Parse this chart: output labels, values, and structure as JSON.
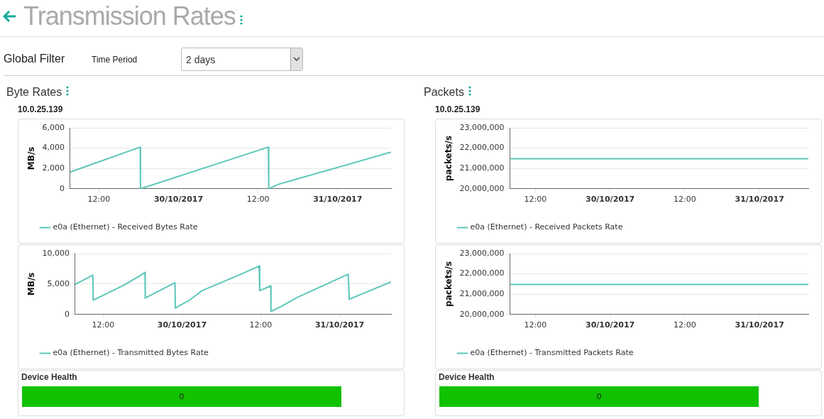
{
  "chart_data": [
    {
      "type": "other",
      "title": "Transmission Rates",
      "annotations": [
        "Global Filter",
        "Time Period",
        "2 days"
      ]
    },
    {
      "type": "line",
      "title": "Byte Rates",
      "subtitle": "10.0.25.139",
      "ylabel": "MB/s",
      "x": [
        "2017-10-29T07:40",
        "2017-10-29T18:14",
        "2017-10-29T18:16",
        "2017-10-30T13:33",
        "2017-10-30T13:36",
        "2017-10-30T15:06",
        "2017-10-31T08:03"
      ],
      "series": [
        {
          "name": "e0a (Ethernet) - Received Bytes Rate",
          "color": "#5cc6b9",
          "values": [
            1650,
            4100,
            0,
            4100,
            0,
            450,
            3600
          ]
        }
      ],
      "xlim": [
        "2017-10-29T07:40",
        "2017-10-31T08:03"
      ],
      "xticks": [
        {
          "value": "2017-10-29T12:00",
          "label": "12:00"
        },
        {
          "value": "2017-10-30T00:00",
          "label": "30/10/2017"
        },
        {
          "value": "2017-10-30T12:00",
          "label": "12:00"
        },
        {
          "value": "2017-10-31T00:00",
          "label": "31/10/2017"
        }
      ],
      "ylim": [
        0,
        6000
      ],
      "yticks": [
        0,
        {
          "value": 2000,
          "label": "2,000"
        },
        {
          "value": 4000,
          "label": "4,000"
        },
        {
          "value": 6000,
          "label": "6,000"
        }
      ],
      "grid": "y",
      "legend": "bottom",
      "marker": "none"
    },
    {
      "type": "line",
      "ylabel": "MB/s",
      "x": [
        "2017-10-29T07:44",
        "2017-10-29T09:28",
        "2017-10-29T10:26",
        "2017-10-29T10:29",
        "2017-10-29T15:08",
        "2017-10-29T17:16",
        "2017-10-29T18:22",
        "2017-10-29T18:24",
        "2017-10-29T22:56",
        "2017-10-29T22:59",
        "2017-10-30T01:17",
        "2017-10-30T03:02",
        "2017-10-30T09:17",
        "2017-10-30T11:45",
        "2017-10-30T11:50",
        "2017-10-30T13:31",
        "2017-10-30T13:33",
        "2017-10-30T15:14",
        "2017-10-30T17:29",
        "2017-10-31T01:18",
        "2017-10-31T01:28",
        "2017-10-31T07:50"
      ],
      "series": [
        {
          "name": "e0a (Ethernet) - Transmitted Bytes Rate",
          "color": "#5cc6b9",
          "values": [
            4950,
            5900,
            6450,
            2350,
            4800,
            6150,
            6900,
            2700,
            5200,
            1050,
            2450,
            3900,
            6750,
            7950,
            3900,
            4700,
            500,
            1400,
            2750,
            6600,
            2500,
            5350
          ]
        }
      ],
      "xlim": [
        "2017-10-29T07:44",
        "2017-10-31T07:50"
      ],
      "xticks": [
        {
          "value": "2017-10-29T12:00",
          "label": "12:00"
        },
        {
          "value": "2017-10-30T00:00",
          "label": "30/10/2017"
        },
        {
          "value": "2017-10-30T12:00",
          "label": "12:00"
        },
        {
          "value": "2017-10-31T00:00",
          "label": "31/10/2017"
        }
      ],
      "ylim": [
        0,
        10000
      ],
      "yticks": [
        0,
        {
          "value": 5000,
          "label": "5,000"
        },
        {
          "value": 10000,
          "label": "10,000"
        }
      ],
      "grid": "y",
      "legend": "bottom",
      "marker": "none"
    },
    {
      "type": "other",
      "title": "Device Health",
      "annotations": [
        "0"
      ]
    },
    {
      "type": "line",
      "title": "Packets",
      "subtitle": "10.0.25.139",
      "ylabel": "packets/s",
      "x": [
        "2017-10-29T07:54",
        "2017-10-31T07:51"
      ],
      "series": [
        {
          "name": "e0a (Ethernet) - Received Packets Rate",
          "color": "#5cc6b9",
          "values": [
            21480000,
            21480000
          ]
        }
      ],
      "xlim": [
        "2017-10-29T07:54",
        "2017-10-31T07:51"
      ],
      "xticks": [
        {
          "value": "2017-10-29T12:00",
          "label": "12:00"
        },
        {
          "value": "2017-10-30T00:00",
          "label": "30/10/2017"
        },
        {
          "value": "2017-10-30T12:00",
          "label": "12:00"
        },
        {
          "value": "2017-10-31T00:00",
          "label": "31/10/2017"
        }
      ],
      "ylim": [
        20000000,
        23000000
      ],
      "yticks": [
        {
          "value": 20000000,
          "label": "20,000,000"
        },
        {
          "value": 21000000,
          "label": "21,000,000"
        },
        {
          "value": 22000000,
          "label": "22,000,000"
        },
        {
          "value": 23000000,
          "label": "23,000,000"
        }
      ],
      "grid": "y",
      "legend": "bottom",
      "marker": "none"
    },
    {
      "type": "line",
      "ylabel": "packets/s",
      "x": [
        "2017-10-29T07:54",
        "2017-10-31T07:51"
      ],
      "series": [
        {
          "name": "e0a (Ethernet) - Transmitted Packets Rate",
          "color": "#5cc6b9",
          "values": [
            21480000,
            21480000
          ]
        }
      ],
      "xlim": [
        "2017-10-29T07:54",
        "2017-10-31T07:51"
      ],
      "xticks": [
        {
          "value": "2017-10-29T12:00",
          "label": "12:00"
        },
        {
          "value": "2017-10-30T00:00",
          "label": "30/10/2017"
        },
        {
          "value": "2017-10-30T12:00",
          "label": "12:00"
        },
        {
          "value": "2017-10-31T00:00",
          "label": "31/10/2017"
        }
      ],
      "ylim": [
        20000000,
        23000000
      ],
      "yticks": [
        {
          "value": 20000000,
          "label": "20,000,000"
        },
        {
          "value": 21000000,
          "label": "21,000,000"
        },
        {
          "value": 22000000,
          "label": "22,000,000"
        },
        {
          "value": 23000000,
          "label": "23,000,000"
        }
      ],
      "grid": "y",
      "legend": "bottom",
      "marker": "none"
    },
    {
      "type": "other",
      "title": "Device Health",
      "annotations": [
        "0"
      ]
    }
  ]
}
